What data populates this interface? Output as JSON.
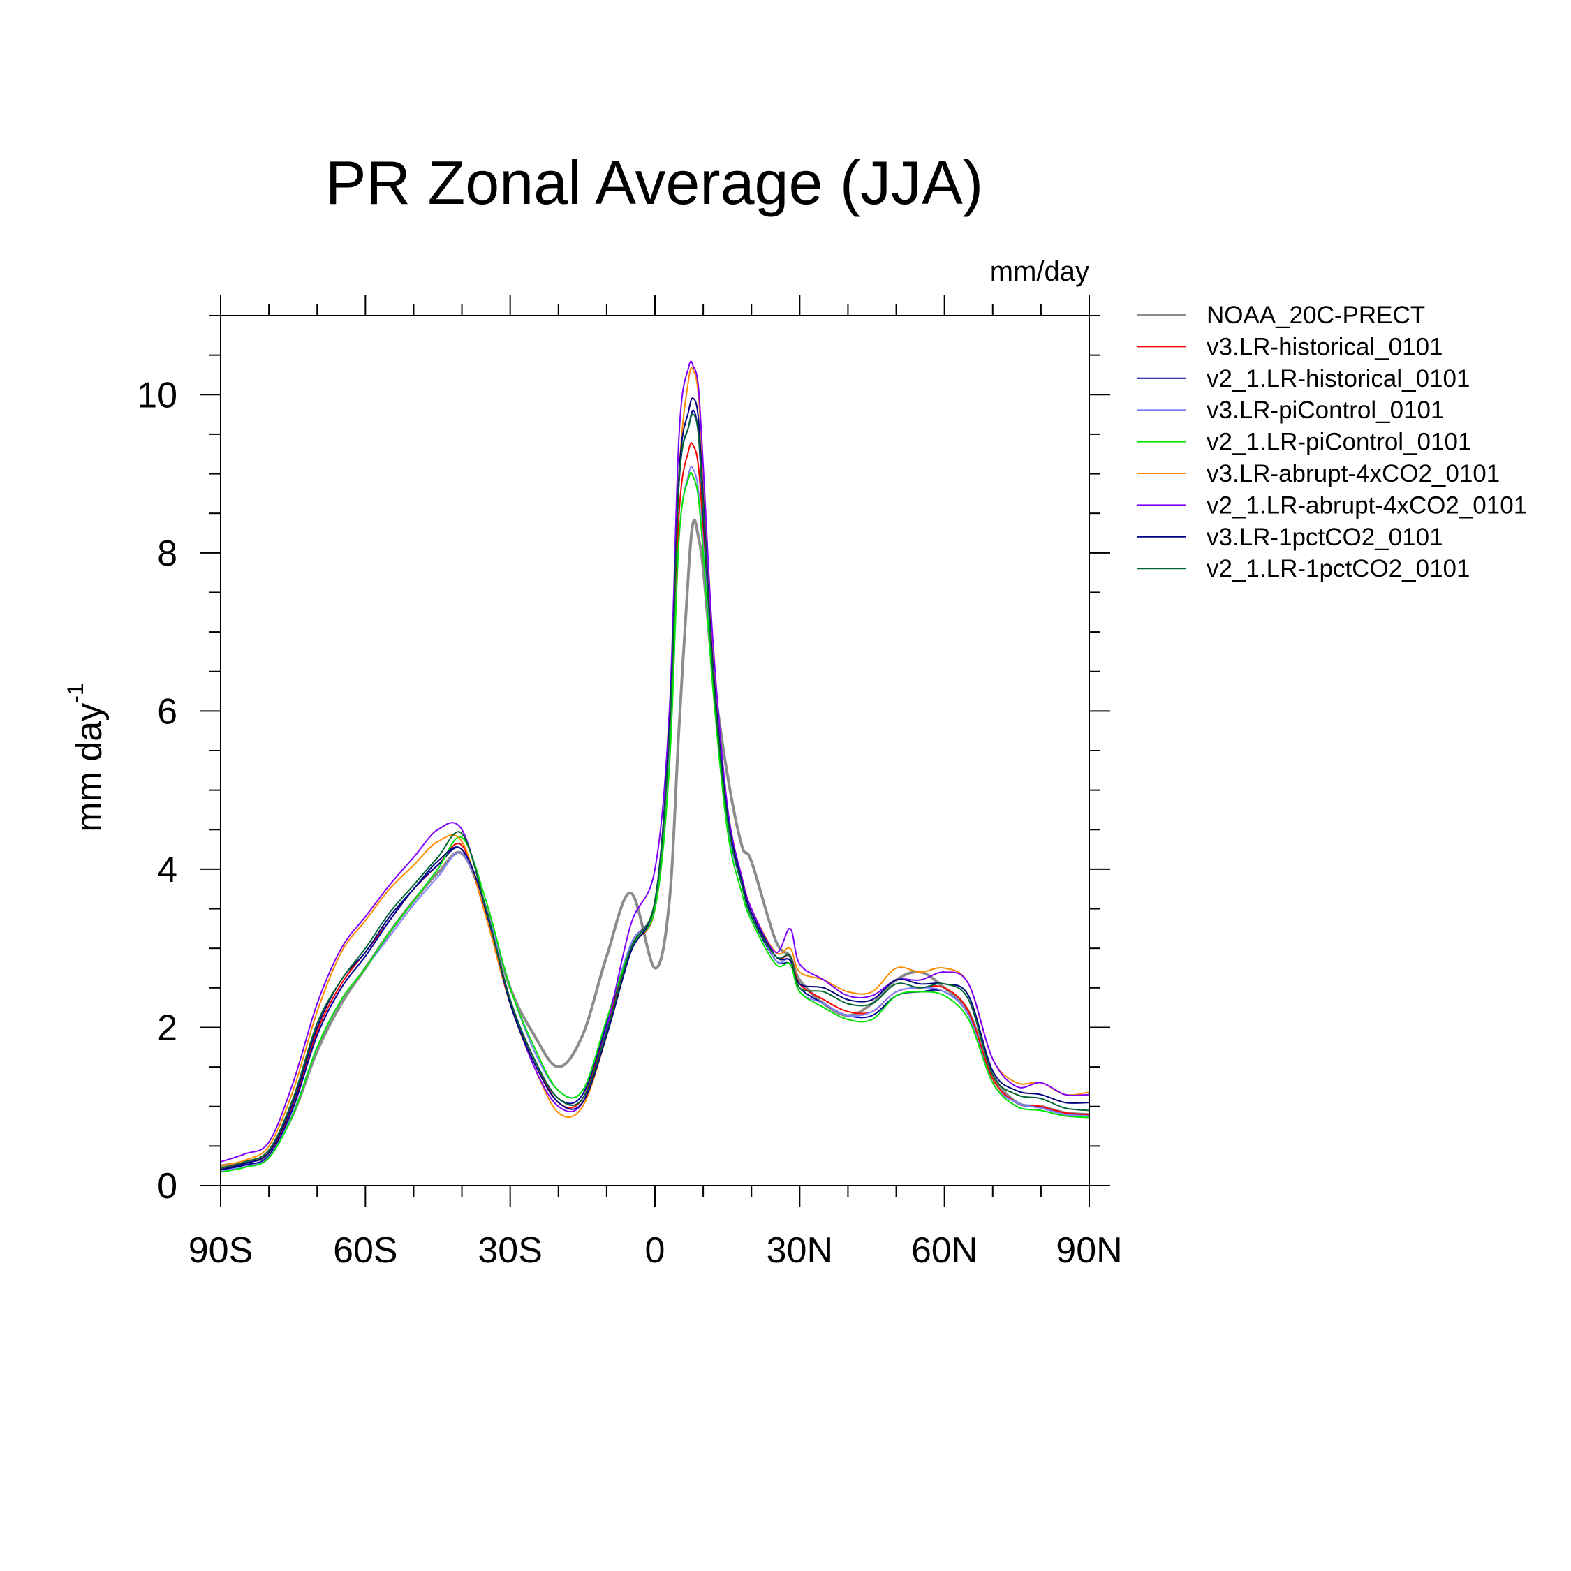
{
  "chart_data": {
    "type": "line",
    "title": "PR Zonal Average (JJA)",
    "units_label": "mm/day",
    "ylabel": "mm day",
    "ylabel_superscript": "-1",
    "xlim": [
      -90,
      90
    ],
    "ylim": [
      0,
      11
    ],
    "xticks": [
      {
        "value": -90,
        "label": "90S"
      },
      {
        "value": -60,
        "label": "60S"
      },
      {
        "value": -30,
        "label": "30S"
      },
      {
        "value": 0,
        "label": "0"
      },
      {
        "value": 30,
        "label": "30N"
      },
      {
        "value": 60,
        "label": "60N"
      },
      {
        "value": 90,
        "label": "90N"
      }
    ],
    "yticks": [
      {
        "value": 0,
        "label": "0"
      },
      {
        "value": 2,
        "label": "2"
      },
      {
        "value": 4,
        "label": "4"
      },
      {
        "value": 6,
        "label": "6"
      },
      {
        "value": 8,
        "label": "8"
      },
      {
        "value": 10,
        "label": "10"
      }
    ],
    "legend_position": "right",
    "x": [
      -90,
      -85,
      -80,
      -75,
      -70,
      -65,
      -60,
      -55,
      -50,
      -45,
      -40,
      -35,
      -30,
      -25,
      -20,
      -15,
      -10,
      -5,
      0,
      3,
      5,
      7,
      8,
      9,
      10,
      12,
      15,
      18,
      20,
      25,
      28,
      30,
      35,
      40,
      45,
      50,
      55,
      60,
      65,
      70,
      75,
      80,
      85,
      90
    ],
    "series": [
      {
        "name": "NOAA_20C-PRECT",
        "color": "#8c8c8c",
        "width": 4,
        "values": [
          0.25,
          0.3,
          0.4,
          0.9,
          1.7,
          2.3,
          2.75,
          3.2,
          3.6,
          3.95,
          4.2,
          3.5,
          2.5,
          1.9,
          1.5,
          1.9,
          2.9,
          3.7,
          2.75,
          3.6,
          5.8,
          7.8,
          8.4,
          8.2,
          7.8,
          6.5,
          5.2,
          4.3,
          4.1,
          3.1,
          2.9,
          2.6,
          2.3,
          2.15,
          2.3,
          2.6,
          2.7,
          2.5,
          2.2,
          1.4,
          1.05,
          1.0,
          0.92,
          0.9
        ]
      },
      {
        "name": "v3.LR-historical_0101",
        "color": "#ff0000",
        "width": 2,
        "values": [
          0.22,
          0.28,
          0.42,
          1.0,
          1.95,
          2.55,
          2.95,
          3.35,
          3.75,
          4.05,
          4.3,
          3.4,
          2.3,
          1.6,
          1.05,
          1.1,
          2.0,
          3.0,
          3.5,
          5.5,
          8.5,
          9.3,
          9.35,
          9.1,
          8.3,
          6.5,
          4.7,
          3.9,
          3.5,
          2.9,
          2.9,
          2.55,
          2.35,
          2.2,
          2.2,
          2.45,
          2.5,
          2.5,
          2.2,
          1.35,
          1.05,
          1.0,
          0.92,
          0.9
        ]
      },
      {
        "name": "v2_1.LR-historical_0101",
        "color": "#000099",
        "width": 2,
        "values": [
          0.2,
          0.26,
          0.38,
          0.98,
          1.9,
          2.5,
          2.9,
          3.35,
          3.75,
          4.05,
          4.25,
          3.45,
          2.35,
          1.6,
          1.1,
          1.15,
          2.05,
          3.05,
          3.6,
          5.8,
          8.9,
          9.6,
          9.8,
          9.5,
          8.5,
          6.5,
          4.6,
          3.8,
          3.4,
          2.85,
          2.8,
          2.5,
          2.3,
          2.15,
          2.15,
          2.4,
          2.45,
          2.45,
          2.15,
          1.3,
          1.05,
          0.98,
          0.9,
          0.88
        ]
      },
      {
        "name": "v3.LR-piControl_0101",
        "color": "#8080ff",
        "width": 2,
        "values": [
          0.18,
          0.24,
          0.36,
          0.92,
          1.75,
          2.35,
          2.75,
          3.15,
          3.55,
          3.9,
          4.2,
          3.5,
          2.5,
          1.7,
          1.2,
          1.2,
          2.1,
          3.05,
          3.55,
          5.4,
          8.2,
          9.0,
          9.05,
          8.8,
          8.1,
          6.4,
          4.6,
          3.8,
          3.45,
          2.85,
          2.85,
          2.45,
          2.3,
          2.15,
          2.2,
          2.45,
          2.5,
          2.45,
          2.15,
          1.3,
          1.05,
          0.98,
          0.9,
          0.88
        ]
      },
      {
        "name": "v2_1.LR-piControl_0101",
        "color": "#00e600",
        "width": 2,
        "values": [
          0.17,
          0.23,
          0.35,
          0.9,
          1.75,
          2.35,
          2.75,
          3.2,
          3.6,
          4.0,
          4.4,
          3.6,
          2.5,
          1.75,
          1.2,
          1.2,
          2.1,
          3.0,
          3.5,
          5.3,
          8.2,
          8.95,
          8.95,
          8.7,
          8.0,
          6.3,
          4.5,
          3.7,
          3.35,
          2.8,
          2.8,
          2.45,
          2.25,
          2.1,
          2.1,
          2.4,
          2.45,
          2.4,
          2.1,
          1.3,
          1.0,
          0.95,
          0.88,
          0.86
        ]
      },
      {
        "name": "v3.LR-abrupt-4xCO2_0101",
        "color": "#ff8c00",
        "width": 2,
        "values": [
          0.25,
          0.32,
          0.5,
          1.2,
          2.2,
          2.95,
          3.35,
          3.75,
          4.05,
          4.35,
          4.35,
          3.4,
          2.3,
          1.5,
          0.92,
          1.0,
          1.9,
          3.0,
          3.6,
          5.7,
          9.0,
          10.2,
          10.3,
          10.0,
          9.0,
          6.8,
          4.8,
          3.9,
          3.5,
          2.95,
          3.0,
          2.7,
          2.6,
          2.45,
          2.45,
          2.75,
          2.7,
          2.75,
          2.55,
          1.6,
          1.3,
          1.3,
          1.15,
          1.18
        ]
      },
      {
        "name": "v2_1.LR-abrupt-4xCO2_0101",
        "color": "#8000ff",
        "width": 2,
        "values": [
          0.3,
          0.4,
          0.55,
          1.3,
          2.3,
          3.0,
          3.4,
          3.8,
          4.15,
          4.5,
          4.5,
          3.5,
          2.35,
          1.5,
          1.0,
          1.05,
          2.0,
          3.3,
          4.0,
          6.0,
          9.5,
          10.35,
          10.35,
          10.1,
          9.1,
          6.9,
          4.8,
          3.9,
          3.5,
          2.95,
          3.25,
          2.8,
          2.6,
          2.4,
          2.4,
          2.6,
          2.6,
          2.7,
          2.55,
          1.6,
          1.25,
          1.3,
          1.15,
          1.15
        ]
      },
      {
        "name": "v3.LR-1pctCO2_0101",
        "color": "#000080",
        "width": 2,
        "values": [
          0.2,
          0.28,
          0.42,
          1.05,
          2.0,
          2.6,
          2.95,
          3.4,
          3.75,
          4.1,
          4.25,
          3.5,
          2.3,
          1.55,
          1.05,
          1.05,
          1.9,
          2.95,
          3.6,
          5.8,
          9.0,
          9.8,
          9.95,
          9.7,
          8.7,
          6.6,
          4.7,
          3.85,
          3.45,
          2.9,
          2.85,
          2.55,
          2.5,
          2.35,
          2.35,
          2.6,
          2.55,
          2.55,
          2.4,
          1.45,
          1.2,
          1.15,
          1.05,
          1.05
        ]
      },
      {
        "name": "v2_1.LR-1pctCO2_0101",
        "color": "#006633",
        "width": 2,
        "values": [
          0.22,
          0.3,
          0.45,
          1.1,
          2.05,
          2.6,
          3.0,
          3.45,
          3.8,
          4.15,
          4.45,
          3.5,
          2.35,
          1.6,
          1.1,
          1.1,
          1.95,
          3.0,
          3.6,
          5.7,
          8.9,
          9.6,
          9.75,
          9.5,
          8.6,
          6.5,
          4.65,
          3.8,
          3.4,
          2.9,
          2.9,
          2.5,
          2.45,
          2.3,
          2.3,
          2.55,
          2.5,
          2.55,
          2.35,
          1.4,
          1.15,
          1.1,
          0.98,
          0.95
        ]
      }
    ]
  }
}
